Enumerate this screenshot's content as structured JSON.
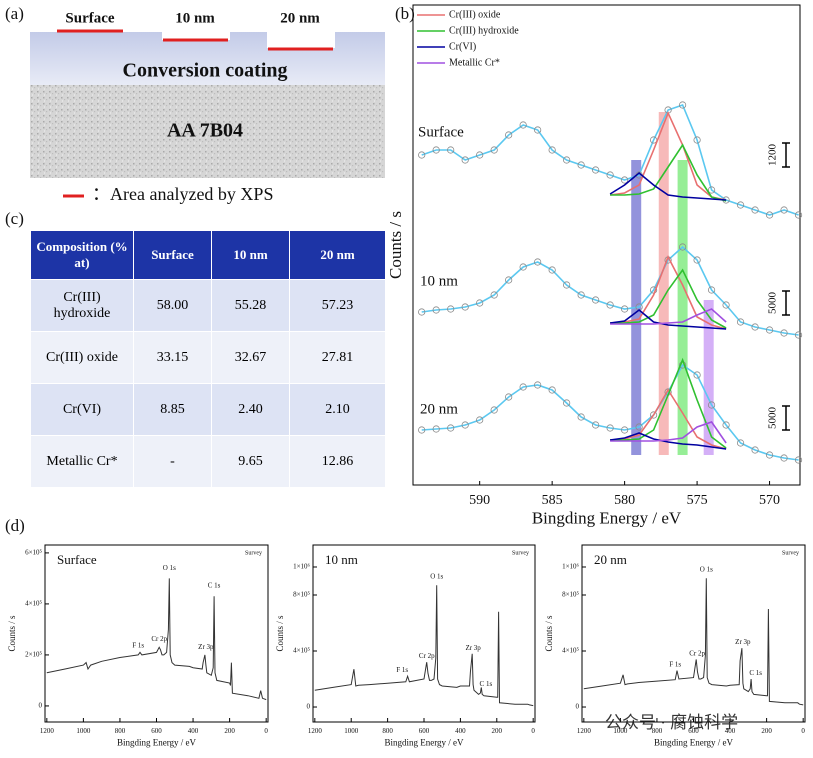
{
  "panel_a": {
    "label": "(a)",
    "positions": [
      "Surface",
      "10 nm",
      "20 nm"
    ],
    "coating": "Conversion coating",
    "substrate": "AA 7B04",
    "legend": "：Area analyzed by XPS"
  },
  "table": {
    "label": "(c)",
    "header": [
      "Composition (% at)",
      "Surface",
      "10 nm",
      "20 nm"
    ],
    "rows": [
      [
        "Cr(III) hydroxide",
        "58.00",
        "55.28",
        "57.23"
      ],
      [
        "Cr(III) oxide",
        "33.15",
        "32.67",
        "27.81"
      ],
      [
        "Cr(VI)",
        "8.85",
        "2.40",
        "2.10"
      ],
      [
        "Metallic Cr*",
        "-",
        "9.65",
        "12.86"
      ]
    ]
  },
  "panel_d_label": "(d)",
  "watermark": "公众号 · 腐蚀科学",
  "chart_data": [
    {
      "type": "line",
      "label": "(b)",
      "xlabel": "Bingding Energy / eV",
      "ylabel": "Counts / s",
      "xlim": [
        594.6,
        567.9
      ],
      "xticks": [
        590,
        585,
        580,
        575,
        570
      ],
      "ylim": [
        0,
        480
      ],
      "color": "#5bc8f0",
      "marker_color": "#8a8a8a",
      "legend": [
        {
          "name": "Cr(III) oxide",
          "color": "#e87070"
        },
        {
          "name": "Cr(III) hydroxide",
          "color": "#30c030"
        },
        {
          "name": "Cr(VI)",
          "color": "#0000a0"
        },
        {
          "name": "Metallic Cr*",
          "color": "#a050e0"
        }
      ],
      "bands": [
        {
          "x": 579.2,
          "color": "#3a3ac0"
        },
        {
          "x": 577.3,
          "color": "#f08080"
        },
        {
          "x": 576.0,
          "color": "#40e040"
        },
        {
          "x": 574.2,
          "color": "#b070f0"
        }
      ],
      "x": [
        594,
        593,
        592,
        591,
        590,
        589,
        588,
        587,
        586,
        585,
        584,
        583,
        582,
        581,
        580,
        579,
        578,
        577,
        576,
        575,
        574,
        573,
        572,
        571,
        570,
        569,
        568
      ],
      "component_x": [
        581,
        580,
        579,
        578,
        577,
        576,
        575,
        574,
        573
      ],
      "series": [
        {
          "name": "Surface",
          "scale_bar": 1200,
          "values": [
            330,
            335,
            335,
            325,
            330,
            335,
            350,
            360,
            355,
            335,
            325,
            320,
            315,
            310,
            305,
            310,
            345,
            375,
            380,
            345,
            295,
            285,
            280,
            275,
            270,
            275,
            270
          ],
          "components": [
            [
              290,
              292,
              300,
              335,
              372,
              340,
              300,
              288,
              285
            ],
            [
              290,
              290,
              291,
              296,
              318,
              340,
              310,
              288,
              284
            ],
            [
              291,
              300,
              312,
              300,
              290,
              288,
              287,
              286,
              285
            ],
            null
          ]
        },
        {
          "name": "10 nm",
          "scale_bar": 5000,
          "values": [
            173,
            175,
            176,
            178,
            182,
            190,
            205,
            218,
            223,
            215,
            200,
            190,
            185,
            180,
            176,
            178,
            195,
            225,
            238,
            225,
            195,
            180,
            163,
            158,
            155,
            152,
            150
          ],
          "components": [
            [
              162,
              163,
              166,
              190,
              228,
              200,
              168,
              160,
              156
            ],
            [
              162,
              162,
              163,
              170,
              195,
              215,
              185,
              165,
              157
            ],
            [
              162,
              164,
              175,
              163,
              160,
              159,
              158,
              157,
              156
            ],
            [
              161,
              161,
              161,
              161,
              162,
              163,
              170,
              176,
              163
            ]
          ]
        },
        {
          "name": "20 nm",
          "scale_bar": 5000,
          "values": [
            55,
            56,
            57,
            60,
            65,
            75,
            88,
            98,
            100,
            95,
            82,
            68,
            60,
            57,
            55,
            58,
            70,
            93,
            120,
            110,
            80,
            60,
            42,
            35,
            30,
            27,
            25
          ],
          "components": [
            [
              45,
              46,
              50,
              70,
              95,
              72,
              48,
              40,
              36
            ],
            [
              45,
              45,
              46,
              55,
              90,
              125,
              85,
              48,
              37
            ],
            [
              45,
              47,
              52,
              46,
              43,
              41,
              40,
              38,
              36
            ],
            [
              44,
              44,
              44,
              44,
              45,
              47,
              58,
              63,
              42
            ]
          ]
        }
      ]
    },
    {
      "type": "line",
      "title": "Surface",
      "subtitle": "Survey",
      "xlabel": "Bingding Energy / eV",
      "ylabel": "Counts / s",
      "color": "#333333",
      "xlim": [
        1210,
        -10
      ],
      "xticks": [
        1200,
        1000,
        800,
        600,
        400,
        200,
        0
      ],
      "ylim": [
        -63000,
        631000
      ],
      "yticks": [
        0,
        {
          "value": 200000,
          "label": "2×10⁵"
        },
        {
          "value": 400000,
          "label": "4×10⁵"
        },
        {
          "value": 600000,
          "label": "6×10⁵"
        }
      ],
      "annotations": [
        "O 1s",
        "C 1s",
        "Cr 2p",
        "F 1s",
        "Zr 3p"
      ],
      "x": [
        1200,
        1100,
        1000,
        985,
        975,
        960,
        900,
        800,
        700,
        690,
        680,
        600,
        585,
        578,
        570,
        560,
        545,
        535,
        530,
        525,
        515,
        500,
        420,
        400,
        350,
        345,
        335,
        330,
        325,
        300,
        290,
        285,
        280,
        270,
        200,
        195,
        190,
        185,
        100,
        40,
        30,
        20,
        0
      ],
      "values": [
        130000,
        145000,
        160000,
        170000,
        145000,
        160000,
        175000,
        190000,
        200000,
        210000,
        200000,
        210000,
        230000,
        220000,
        200000,
        200000,
        210000,
        300000,
        500000,
        200000,
        170000,
        160000,
        155000,
        150000,
        145000,
        170000,
        200000,
        160000,
        130000,
        120000,
        150000,
        430000,
        130000,
        100000,
        90000,
        80000,
        170000,
        50000,
        40000,
        30000,
        60000,
        30000,
        25000
      ]
    },
    {
      "type": "line",
      "title": "10 nm",
      "subtitle": "Survey",
      "xlabel": "Bingding Energy / eV",
      "ylabel": "Counts / s",
      "color": "#333333",
      "xlim": [
        1210,
        -10
      ],
      "xticks": [
        1200,
        1000,
        800,
        600,
        400,
        200,
        0
      ],
      "ylim": [
        -107000,
        1157000
      ],
      "yticks": [
        0,
        {
          "value": 400000,
          "label": "4×10⁵"
        },
        {
          "value": 800000,
          "label": "8×10⁵"
        },
        {
          "value": 1000000,
          "label": "1×10⁶"
        }
      ],
      "annotations": [
        "O 1s",
        "Cr 2p",
        "F 1s",
        "Zr 3p",
        "C 1s"
      ],
      "x": [
        1200,
        1100,
        1000,
        985,
        975,
        960,
        900,
        800,
        700,
        690,
        680,
        600,
        585,
        578,
        570,
        560,
        545,
        535,
        530,
        525,
        515,
        500,
        420,
        400,
        350,
        345,
        335,
        330,
        325,
        300,
        290,
        285,
        280,
        270,
        200,
        195,
        190,
        185,
        100,
        40,
        30,
        20,
        0
      ],
      "values": [
        120000,
        140000,
        160000,
        270000,
        150000,
        155000,
        160000,
        170000,
        180000,
        220000,
        180000,
        200000,
        320000,
        240000,
        190000,
        190000,
        200000,
        350000,
        870000,
        200000,
        160000,
        150000,
        140000,
        150000,
        150000,
        250000,
        380000,
        160000,
        120000,
        90000,
        100000,
        140000,
        90000,
        80000,
        70000,
        70000,
        680000,
        30000,
        20000,
        20000,
        20000,
        15000,
        10000
      ]
    },
    {
      "type": "line",
      "title": "20 nm",
      "subtitle": "Survey",
      "xlabel": "Bingding Energy / eV",
      "ylabel": "Counts / s",
      "color": "#333333",
      "xlim": [
        1210,
        -10
      ],
      "xticks": [
        1200,
        1000,
        800,
        600,
        400,
        200,
        0
      ],
      "ylim": [
        -107000,
        1157000
      ],
      "yticks": [
        0,
        {
          "value": 400000,
          "label": "4×10⁵"
        },
        {
          "value": 800000,
          "label": "8×10⁵"
        },
        {
          "value": 1000000,
          "label": "1×10⁶"
        }
      ],
      "annotations": [
        "O 1s",
        "Cr 2p",
        "F 1s",
        "Zr 3p",
        "C 1s"
      ],
      "x": [
        1200,
        1100,
        1000,
        985,
        975,
        960,
        900,
        800,
        700,
        690,
        680,
        600,
        585,
        578,
        570,
        560,
        545,
        535,
        530,
        525,
        515,
        500,
        420,
        400,
        350,
        345,
        335,
        330,
        325,
        300,
        290,
        285,
        280,
        270,
        200,
        195,
        190,
        185,
        100,
        40,
        30,
        20,
        0
      ],
      "values": [
        130000,
        150000,
        170000,
        230000,
        160000,
        165000,
        175000,
        185000,
        195000,
        260000,
        200000,
        210000,
        340000,
        250000,
        200000,
        200000,
        210000,
        370000,
        920000,
        210000,
        170000,
        160000,
        150000,
        155000,
        160000,
        330000,
        420000,
        170000,
        130000,
        110000,
        130000,
        200000,
        110000,
        90000,
        80000,
        80000,
        700000,
        40000,
        30000,
        30000,
        30000,
        20000,
        15000
      ]
    }
  ]
}
